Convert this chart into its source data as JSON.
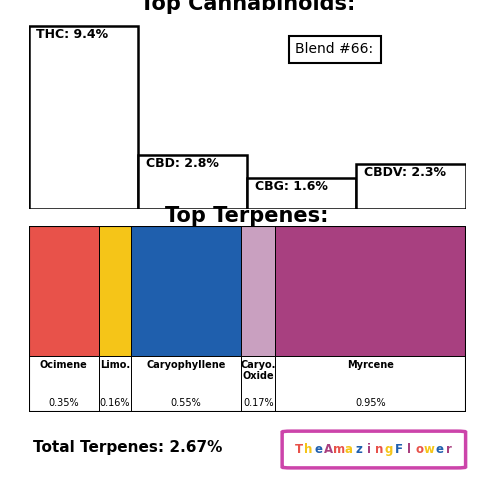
{
  "title_cannabinoids": "Top Cannabinoids:",
  "title_terpenes": "Top Terpenes:",
  "blend_label": "Blend #66:",
  "cannabinoids": [
    {
      "name": "THC",
      "value": 9.4
    },
    {
      "name": "CBD",
      "value": 2.8
    },
    {
      "name": "CBG",
      "value": 1.6
    },
    {
      "name": "CBDV",
      "value": 2.3
    }
  ],
  "terpenes": [
    {
      "name": "Ocimene",
      "value": 0.35,
      "color": "#E8524A"
    },
    {
      "name": "Limo.",
      "value": 0.16,
      "color": "#F5C518"
    },
    {
      "name": "Caryophyllene",
      "value": 0.55,
      "color": "#1F5FAD"
    },
    {
      "name": "Caryo.\nOxide",
      "value": 0.17,
      "color": "#C9A0C0"
    },
    {
      "name": "Myrcene",
      "value": 0.95,
      "color": "#A84080"
    }
  ],
  "total_terpenes": "Total Terpenes: 2.67%",
  "background_color": "#ffffff",
  "title_fontsize": 15,
  "logo_border_color": "#CC44AA",
  "logo_letter_colors": [
    "#E8524A",
    "#F5C518",
    "#1F5FAD",
    "#A84080",
    "#E8524A",
    "#F5C518",
    "#1F5FAD",
    "#A84080",
    "#E8524A",
    "#F5C518",
    "#1F5FAD",
    "#A84080",
    "#E8524A",
    "#F5C518",
    "#1F5FAD",
    "#A84080"
  ],
  "logo_letters": [
    "T",
    "h",
    "e",
    "A",
    "m",
    "a",
    "z",
    "i",
    "n",
    "g",
    "F",
    "l",
    "o",
    "w",
    "e",
    "r"
  ]
}
